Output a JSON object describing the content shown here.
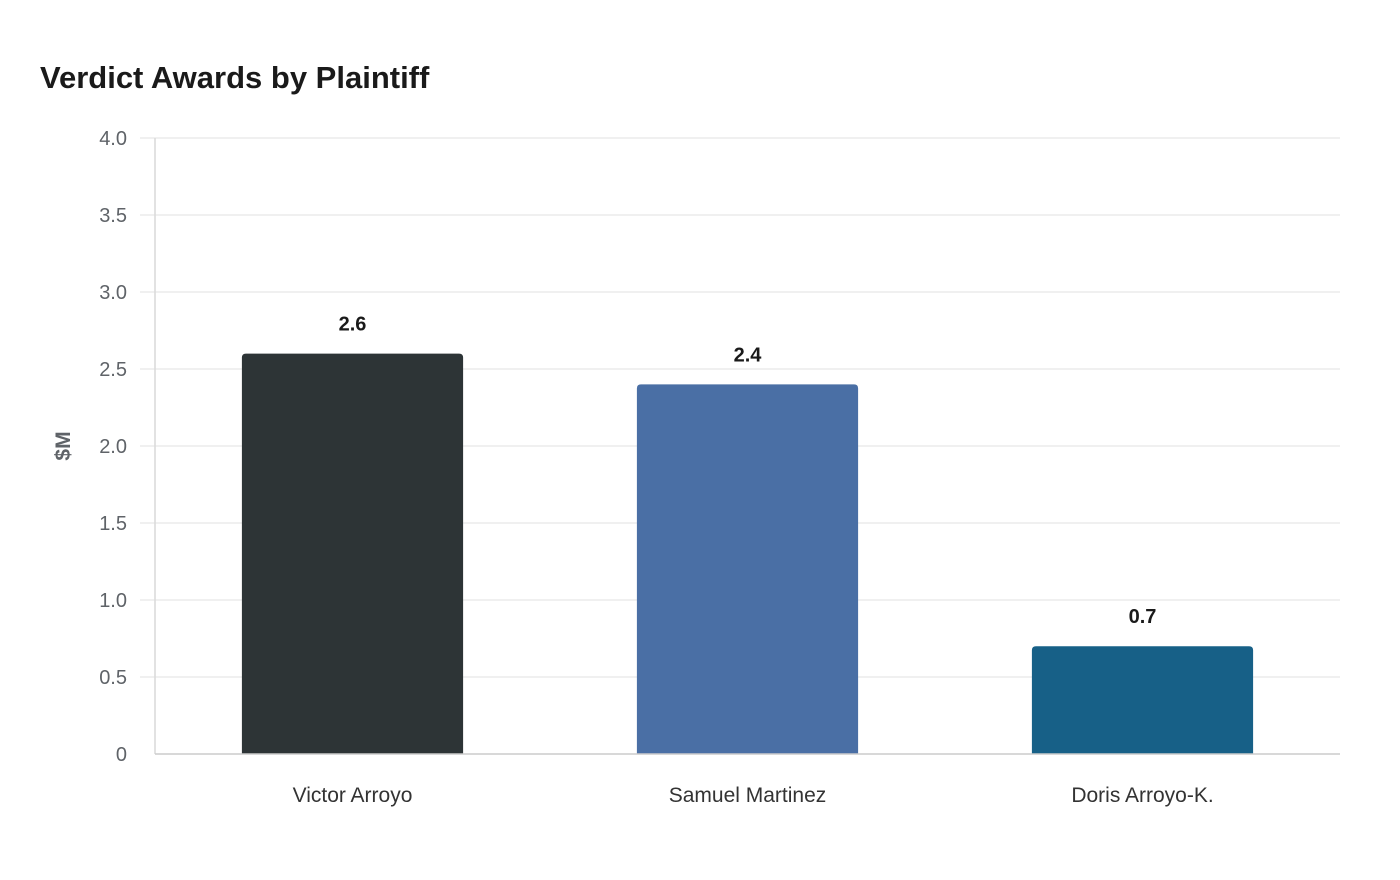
{
  "chart_data": {
    "type": "bar",
    "title": "Verdict Awards by Plaintiff",
    "xlabel": "",
    "ylabel": "$M",
    "ylim": [
      0,
      4.0
    ],
    "yticks": [
      "0",
      "0.5",
      "1.0",
      "1.5",
      "2.0",
      "2.5",
      "3.0",
      "3.5",
      "4.0"
    ],
    "grid": true,
    "categories": [
      "Victor Arroyo",
      "Samuel Martinez",
      "Doris Arroyo-K."
    ],
    "values": [
      2.6,
      2.4,
      0.7
    ],
    "data_labels": [
      "2.6",
      "2.4",
      "0.7"
    ],
    "colors": [
      "#2d3436",
      "#4a6fa5",
      "#176087"
    ]
  }
}
